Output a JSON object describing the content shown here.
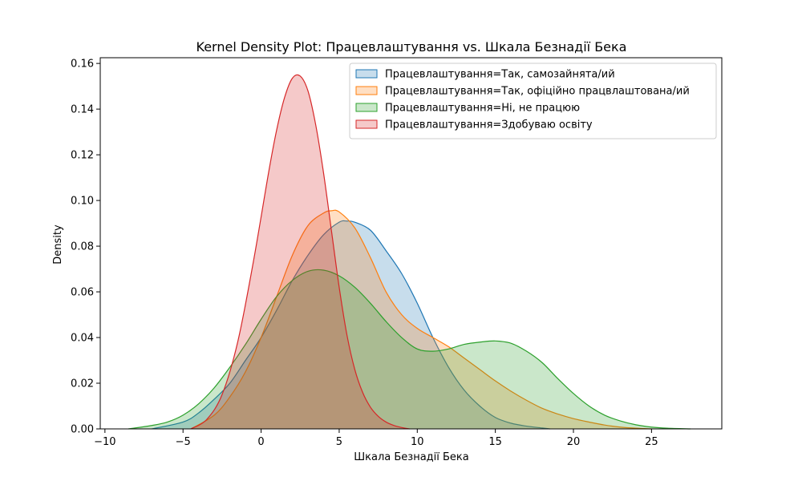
{
  "chart_data": {
    "type": "area",
    "title": "Kernel Density Plot: Працевлаштування vs. Шкала Безнадії Бека",
    "xlabel": "Шкала Безнадії Бека",
    "ylabel": "Density",
    "xlim": [
      -10.3,
      29.5
    ],
    "ylim": [
      0,
      0.1625
    ],
    "x_ticks": [
      -10,
      -5,
      0,
      5,
      10,
      15,
      20,
      25
    ],
    "y_ticks": [
      0.0,
      0.02,
      0.04,
      0.06,
      0.08,
      0.1,
      0.12,
      0.14,
      0.16
    ],
    "y_tick_labels": [
      "0.00",
      "0.02",
      "0.04",
      "0.06",
      "0.08",
      "0.10",
      "0.12",
      "0.14",
      "0.16"
    ],
    "legend_position": "top-right",
    "grid": false,
    "series": [
      {
        "name": "Працевлаштування=Так, самозайнята/ий",
        "color": "#1f77b4",
        "fill_opacity": 0.25,
        "x": [
          -7,
          -5,
          -4,
          -3,
          -2,
          -1,
          0,
          1,
          2,
          3,
          4,
          5,
          5.5,
          6,
          7,
          8,
          9,
          10,
          11,
          12,
          13,
          14,
          15,
          16,
          17,
          18,
          18.5
        ],
        "y": [
          0.0,
          0.003,
          0.007,
          0.013,
          0.02,
          0.03,
          0.04,
          0.052,
          0.065,
          0.076,
          0.085,
          0.0905,
          0.091,
          0.0905,
          0.087,
          0.078,
          0.068,
          0.055,
          0.04,
          0.027,
          0.017,
          0.01,
          0.005,
          0.0025,
          0.0012,
          0.0004,
          0.0
        ]
      },
      {
        "name": "Працевлаштування=Так, офіційно працвлаштована/ий",
        "color": "#ff7f0e",
        "fill_opacity": 0.25,
        "x": [
          -4.5,
          -3,
          -2,
          -1,
          0,
          1,
          2,
          3,
          4,
          4.5,
          5,
          6,
          7,
          8,
          9,
          10,
          11,
          12,
          13,
          14,
          15,
          16,
          17,
          18,
          19,
          20,
          21,
          22,
          23,
          24,
          25
        ],
        "y": [
          0.0,
          0.006,
          0.014,
          0.025,
          0.04,
          0.058,
          0.076,
          0.089,
          0.0945,
          0.0955,
          0.095,
          0.088,
          0.075,
          0.06,
          0.05,
          0.044,
          0.04,
          0.036,
          0.031,
          0.026,
          0.021,
          0.0165,
          0.0125,
          0.009,
          0.0065,
          0.0045,
          0.003,
          0.0017,
          0.0008,
          0.0003,
          0.0
        ]
      },
      {
        "name": "Працевлаштування=Ні, не працюю",
        "color": "#2ca02c",
        "fill_opacity": 0.25,
        "x": [
          -8.5,
          -7,
          -6,
          -5,
          -4,
          -3,
          -2,
          -1,
          0,
          1,
          2,
          3,
          4,
          5,
          6,
          7,
          8,
          9,
          10,
          11,
          12,
          13,
          14,
          15,
          16,
          17,
          18,
          19,
          20,
          21,
          22,
          23,
          24,
          25,
          26,
          27.5
        ],
        "y": [
          0.0,
          0.0015,
          0.003,
          0.006,
          0.011,
          0.018,
          0.027,
          0.037,
          0.048,
          0.058,
          0.065,
          0.069,
          0.0695,
          0.067,
          0.062,
          0.055,
          0.047,
          0.04,
          0.035,
          0.034,
          0.035,
          0.037,
          0.038,
          0.0385,
          0.0375,
          0.034,
          0.029,
          0.022,
          0.0155,
          0.01,
          0.006,
          0.0035,
          0.0018,
          0.0008,
          0.0003,
          0.0
        ]
      },
      {
        "name": "Працевлаштування=Здобуваю освіту",
        "color": "#d62728",
        "fill_opacity": 0.25,
        "x": [
          -4.5,
          -3.5,
          -2.5,
          -1.5,
          -0.5,
          0.5,
          1,
          1.5,
          2,
          2.5,
          3,
          3.5,
          4,
          4.5,
          5,
          5.5,
          6,
          6.5,
          7,
          7.5,
          8,
          8.5,
          9,
          9.5
        ],
        "y": [
          0.0,
          0.004,
          0.015,
          0.038,
          0.073,
          0.113,
          0.131,
          0.145,
          0.1535,
          0.1545,
          0.148,
          0.133,
          0.112,
          0.087,
          0.062,
          0.041,
          0.026,
          0.016,
          0.0095,
          0.0055,
          0.003,
          0.0015,
          0.0006,
          0.0
        ]
      }
    ]
  }
}
